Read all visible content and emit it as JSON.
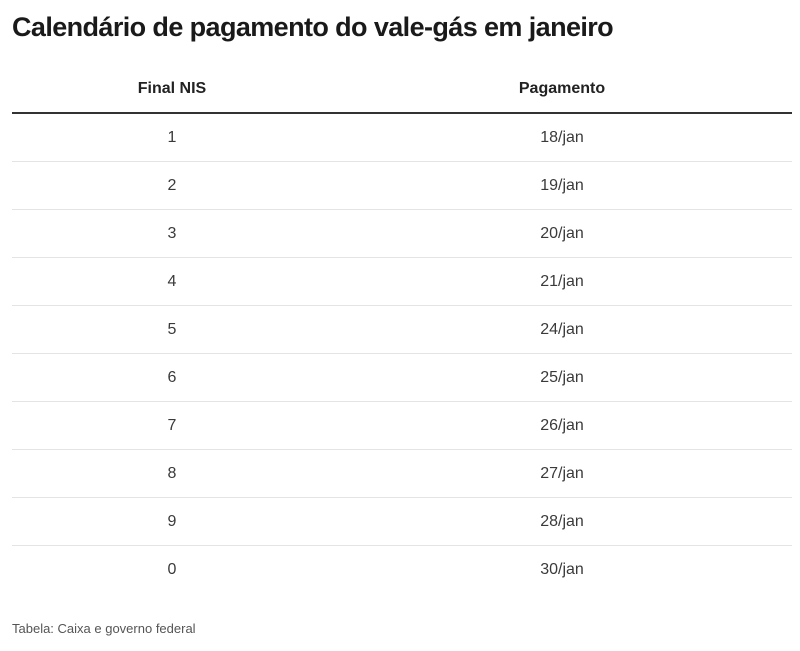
{
  "title": "Calendário de pagamento do vale-gás em janeiro",
  "table": {
    "headers": {
      "final_nis": "Final NIS",
      "pagamento": "Pagamento"
    },
    "rows": [
      {
        "final_nis": "1",
        "pagamento": "18/jan"
      },
      {
        "final_nis": "2",
        "pagamento": "19/jan"
      },
      {
        "final_nis": "3",
        "pagamento": "20/jan"
      },
      {
        "final_nis": "4",
        "pagamento": "21/jan"
      },
      {
        "final_nis": "5",
        "pagamento": "24/jan"
      },
      {
        "final_nis": "6",
        "pagamento": "25/jan"
      },
      {
        "final_nis": "7",
        "pagamento": "26/jan"
      },
      {
        "final_nis": "8",
        "pagamento": "27/jan"
      },
      {
        "final_nis": "9",
        "pagamento": "28/jan"
      },
      {
        "final_nis": "0",
        "pagamento": "30/jan"
      }
    ]
  },
  "source": "Tabela: Caixa e governo federal"
}
